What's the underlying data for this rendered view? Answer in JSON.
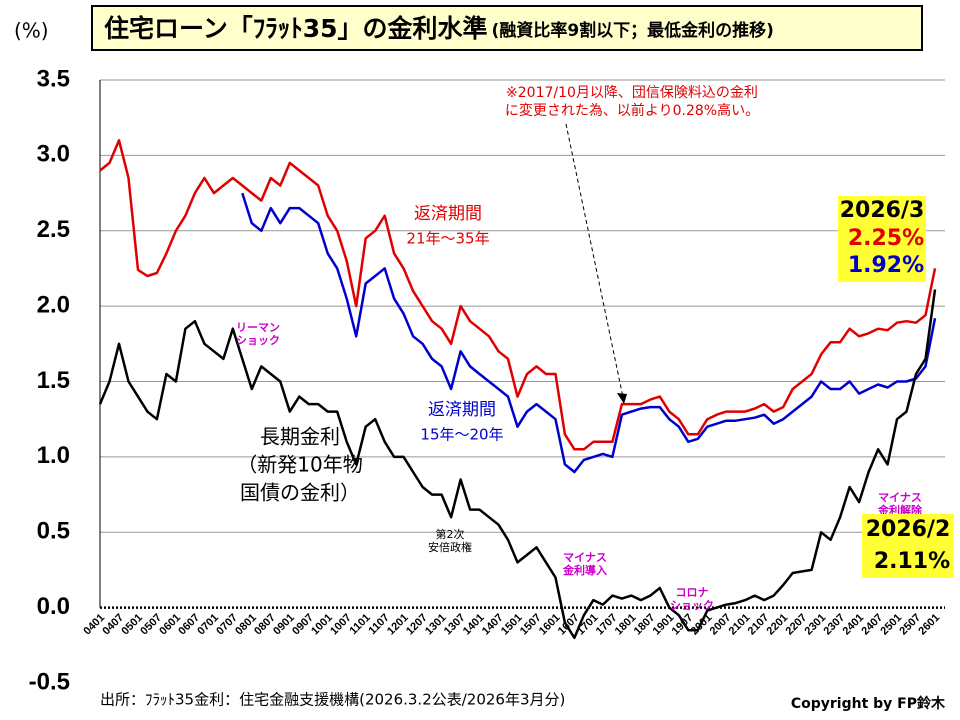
{
  "chart_data": {
    "type": "line",
    "title": "住宅ローン「ﾌﾗｯﾄ35」の金利水準",
    "subtitle": "(融資比率9割以下；最低金利の推移)",
    "y_unit": "(%)",
    "categories": [
      "0401",
      null,
      "0407",
      null,
      "0501",
      null,
      "0507",
      null,
      "0601",
      null,
      "0607",
      null,
      "0701",
      null,
      "0707",
      null,
      "0801",
      null,
      "0807",
      null,
      "0901",
      null,
      "0907",
      null,
      "1001",
      null,
      "1007",
      null,
      "1101",
      null,
      "1107",
      null,
      "1201",
      null,
      "1207",
      null,
      "1301",
      null,
      "1307",
      null,
      "1401",
      null,
      "1407",
      null,
      "1501",
      null,
      "1507",
      null,
      "1601",
      null,
      "1607",
      null,
      "1701",
      null,
      "1707",
      null,
      "1801",
      null,
      "1807",
      null,
      "1901",
      null,
      "1907",
      null,
      "2001",
      null,
      "2007",
      null,
      "2101",
      null,
      "2107",
      null,
      "2201",
      null,
      "2207",
      null,
      "2301",
      null,
      "2307",
      null,
      "2401",
      null,
      "2407",
      null,
      "2501",
      null,
      "2507",
      null,
      "2601"
    ],
    "ylim": [
      -0.5,
      3.5
    ],
    "yticks": [
      -0.5,
      {
        "value": 0,
        "label": "0.0"
      },
      0.5,
      {
        "value": 1,
        "label": "1.0"
      },
      1.5,
      {
        "value": 2,
        "label": "2.0"
      },
      2.5,
      {
        "value": 3,
        "label": "3.0"
      },
      3.5
    ],
    "grid": true,
    "end_label_date": "2026/3",
    "series": [
      {
        "name": [
          "返済期間",
          "21年～35年"
        ],
        "color": "#e00000",
        "end_label": "2.25%",
        "values": [
          2.9,
          2.95,
          3.1,
          2.85,
          2.24,
          2.2,
          2.22,
          2.35,
          2.5,
          2.6,
          2.75,
          2.85,
          2.75,
          2.8,
          2.85,
          2.8,
          2.75,
          2.7,
          2.85,
          2.8,
          2.95,
          2.9,
          2.85,
          2.8,
          2.6,
          2.5,
          2.3,
          2.0,
          2.45,
          2.5,
          2.6,
          2.35,
          2.25,
          2.1,
          2.0,
          1.9,
          1.85,
          1.75,
          2.0,
          1.9,
          1.85,
          1.8,
          1.7,
          1.65,
          1.4,
          1.55,
          1.6,
          1.55,
          1.55,
          1.15,
          1.05,
          1.05,
          1.1,
          1.1,
          1.1,
          1.35,
          1.35,
          1.35,
          1.38,
          1.4,
          1.3,
          1.25,
          1.15,
          1.15,
          1.25,
          1.28,
          1.3,
          1.3,
          1.3,
          1.32,
          1.35,
          1.3,
          1.33,
          1.45,
          1.5,
          1.55,
          1.68,
          1.76,
          1.76,
          1.85,
          1.8,
          1.82,
          1.85,
          1.84,
          1.89,
          1.9,
          1.89,
          1.94,
          2.25
        ]
      },
      {
        "name": [
          "返済期間",
          "15年～20年"
        ],
        "color": "#0000cc",
        "end_label": "1.92%",
        "values": [
          null,
          null,
          null,
          null,
          null,
          null,
          null,
          null,
          null,
          null,
          null,
          null,
          null,
          null,
          null,
          2.75,
          2.55,
          2.5,
          2.65,
          2.55,
          2.65,
          2.65,
          2.6,
          2.55,
          2.35,
          2.25,
          2.05,
          1.8,
          2.15,
          2.2,
          2.25,
          2.05,
          1.95,
          1.8,
          1.75,
          1.65,
          1.6,
          1.45,
          1.7,
          1.6,
          1.55,
          1.5,
          1.45,
          1.4,
          1.2,
          1.3,
          1.35,
          1.3,
          1.25,
          0.95,
          0.9,
          0.98,
          1.0,
          1.02,
          1.0,
          1.28,
          1.3,
          1.32,
          1.33,
          1.33,
          1.25,
          1.2,
          1.1,
          1.12,
          1.2,
          1.22,
          1.24,
          1.24,
          1.25,
          1.26,
          1.28,
          1.22,
          1.25,
          1.3,
          1.35,
          1.4,
          1.5,
          1.45,
          1.45,
          1.5,
          1.42,
          1.45,
          1.48,
          1.46,
          1.5,
          1.5,
          1.52,
          1.6,
          1.92
        ]
      },
      {
        "name": [
          "長期金利",
          "（新発10年物",
          "国債の金利）"
        ],
        "color": "#000000",
        "end_label": "2.11%",
        "end_label_date": "2026/2",
        "values": [
          1.35,
          1.5,
          1.75,
          1.5,
          1.4,
          1.3,
          1.25,
          1.55,
          1.5,
          1.85,
          1.9,
          1.75,
          1.7,
          1.65,
          1.85,
          1.65,
          1.45,
          1.6,
          1.55,
          1.5,
          1.3,
          1.4,
          1.35,
          1.35,
          1.3,
          1.3,
          1.1,
          0.95,
          1.2,
          1.25,
          1.1,
          1.0,
          1.0,
          0.9,
          0.8,
          0.75,
          0.75,
          0.6,
          0.85,
          0.65,
          0.65,
          0.6,
          0.55,
          0.45,
          0.3,
          0.35,
          0.4,
          0.3,
          0.2,
          -0.1,
          -0.2,
          -0.05,
          0.05,
          0.02,
          0.08,
          0.06,
          0.08,
          0.05,
          0.08,
          0.13,
          0.0,
          -0.05,
          -0.15,
          -0.15,
          -0.02,
          0.0,
          0.02,
          0.03,
          0.05,
          0.08,
          0.05,
          0.08,
          0.15,
          0.23,
          0.24,
          0.25,
          0.5,
          0.45,
          0.6,
          0.8,
          0.7,
          0.9,
          1.05,
          0.95,
          1.25,
          1.3,
          1.55,
          1.65,
          2.11
        ]
      }
    ],
    "note": [
      "※2017/10月以降、団信保険料込の金利",
      "に変更された為、以前より0.28%高い。"
    ],
    "events": [
      [
        "リーマン",
        "ショック"
      ],
      [
        "第2次",
        "安倍政権"
      ],
      [
        "マイナス",
        "金利導入"
      ],
      [
        "コロナ",
        "ショック"
      ],
      [
        "マイナス",
        "金利解除"
      ]
    ],
    "source": "出所：ﾌﾗｯﾄ35金利：住宅金融支援機構(2026.3.2公表/2026年3月分)",
    "copyright": "Copyright by FP鈴木"
  }
}
